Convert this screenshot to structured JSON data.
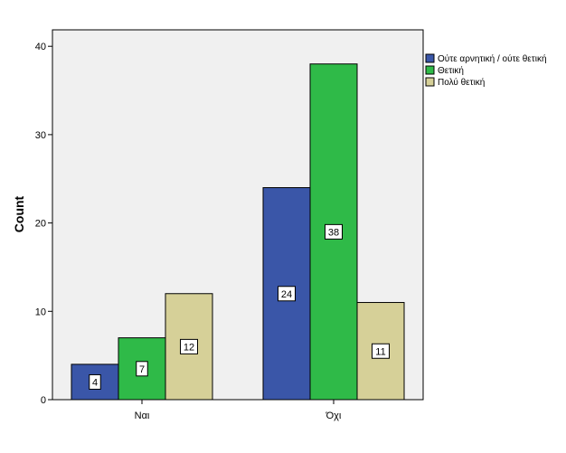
{
  "chart_data": {
    "type": "bar",
    "categories": [
      "Ναι",
      "Όχι"
    ],
    "series": [
      {
        "name": "Ούτε αρνητική / ούτε θετική",
        "color": "#3a56a8",
        "values": [
          4,
          24
        ]
      },
      {
        "name": "Θετική",
        "color": "#2fba48",
        "values": [
          7,
          38
        ]
      },
      {
        "name": "Πολύ θετική",
        "color": "#d6d098",
        "values": [
          12,
          11
        ]
      }
    ],
    "title": "",
    "xlabel": "",
    "ylabel": "Count",
    "ylim": [
      0,
      42
    ],
    "yticks": [
      0,
      10,
      20,
      30,
      40
    ],
    "grid": false,
    "legend_position": "right",
    "plot_background": "#f0f0f0"
  }
}
